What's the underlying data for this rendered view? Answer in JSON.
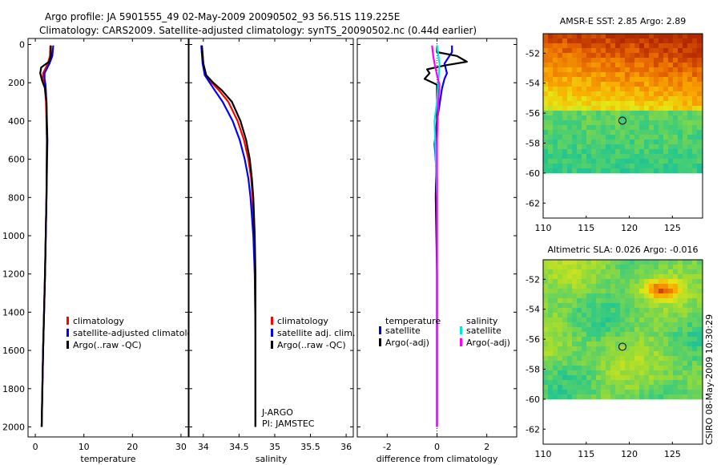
{
  "header": {
    "title_line1": "Argo profile: JA 5901555_49 02-May-2009 20090502_93 56.51S 119.225E",
    "title_line2": "Climatology: CARS2009. Satellite-adjusted climatology: synTS_20090502.nc (0.44d earlier)"
  },
  "footer": {
    "credit": "CSIRO 08-May-2009 10:30:29"
  },
  "colors": {
    "climatology": "#ff0000",
    "satellite": "#0000ff",
    "argo": "#000000",
    "satellite_sal": "#00e5e5",
    "argo_sal": "#ff00ff"
  },
  "chart_data": [
    {
      "id": "temperature",
      "type": "line",
      "xlabel": "temperature",
      "ylabel": "",
      "xlim": [
        -1.5,
        31.5
      ],
      "ylim": [
        2000,
        0
      ],
      "xticks": [
        0,
        10,
        20,
        30
      ],
      "yticks": [
        0,
        200,
        400,
        600,
        800,
        1000,
        1200,
        1400,
        1600,
        1800,
        2000
      ],
      "legend": [
        "climatology",
        "satellite-adjusted climatolo",
        "Argo(..raw -QC)"
      ],
      "series": [
        {
          "name": "climatology",
          "color": "#ff0000",
          "points": [
            [
              3.1,
              5
            ],
            [
              3.0,
              60
            ],
            [
              2.6,
              100
            ],
            [
              1.6,
              150
            ],
            [
              1.5,
              180
            ],
            [
              1.9,
              210
            ],
            [
              2.2,
              300
            ],
            [
              2.4,
              500
            ],
            [
              2.3,
              800
            ],
            [
              2.0,
              1200
            ],
            [
              1.6,
              1600
            ],
            [
              1.3,
              2000
            ]
          ]
        },
        {
          "name": "satellite-adjusted climatology",
          "color": "#0000ff",
          "points": [
            [
              3.7,
              5
            ],
            [
              3.5,
              60
            ],
            [
              2.9,
              100
            ],
            [
              1.9,
              150
            ],
            [
              1.9,
              180
            ],
            [
              2.1,
              210
            ],
            [
              2.3,
              300
            ],
            [
              2.5,
              500
            ],
            [
              2.3,
              800
            ],
            [
              2.0,
              1200
            ],
            [
              1.6,
              1600
            ],
            [
              1.3,
              2000
            ]
          ]
        },
        {
          "name": "Argo",
          "color": "#000000",
          "points": [
            [
              3.2,
              5
            ],
            [
              3.2,
              60
            ],
            [
              2.8,
              90
            ],
            [
              1.2,
              120
            ],
            [
              1.0,
              150
            ],
            [
              1.4,
              190
            ],
            [
              2.0,
              230
            ],
            [
              2.3,
              300
            ],
            [
              2.4,
              500
            ],
            [
              2.3,
              800
            ],
            [
              2.0,
              1200
            ],
            [
              1.6,
              1600
            ],
            [
              1.3,
              2000
            ]
          ]
        }
      ]
    },
    {
      "id": "salinity",
      "type": "line",
      "xlabel": "salinity",
      "ylabel": "",
      "xlim": [
        33.8,
        36.1
      ],
      "ylim": [
        2000,
        0
      ],
      "xticks": [
        34,
        34.5,
        35,
        35.5,
        36
      ],
      "yticks": [
        0,
        200,
        400,
        600,
        800,
        1000,
        1200,
        1400,
        1600,
        1800,
        2000
      ],
      "legend": [
        "climatology",
        "satellite adj. clim.",
        "Argo(..raw -QC)"
      ],
      "annotation": [
        "J-ARGO",
        "PI: JAMSTEC"
      ],
      "series": [
        {
          "name": "climatology",
          "color": "#ff0000",
          "points": [
            [
              33.98,
              5
            ],
            [
              34.0,
              100
            ],
            [
              34.03,
              160
            ],
            [
              34.12,
              200
            ],
            [
              34.22,
              240
            ],
            [
              34.35,
              300
            ],
            [
              34.48,
              400
            ],
            [
              34.57,
              500
            ],
            [
              34.63,
              600
            ],
            [
              34.67,
              700
            ],
            [
              34.69,
              800
            ],
            [
              34.71,
              1000
            ],
            [
              34.72,
              1200
            ],
            [
              34.73,
              1500
            ],
            [
              34.73,
              2000
            ]
          ]
        },
        {
          "name": "satellite adj. clim.",
          "color": "#0000ff",
          "points": [
            [
              33.97,
              5
            ],
            [
              33.99,
              100
            ],
            [
              34.02,
              160
            ],
            [
              34.09,
              200
            ],
            [
              34.16,
              240
            ],
            [
              34.27,
              300
            ],
            [
              34.41,
              400
            ],
            [
              34.51,
              500
            ],
            [
              34.58,
              600
            ],
            [
              34.63,
              700
            ],
            [
              34.66,
              800
            ],
            [
              34.7,
              1000
            ],
            [
              34.72,
              1200
            ],
            [
              34.73,
              1500
            ],
            [
              34.73,
              2000
            ]
          ]
        },
        {
          "name": "Argo",
          "color": "#000000",
          "points": [
            [
              33.98,
              5
            ],
            [
              34.0,
              100
            ],
            [
              34.04,
              160
            ],
            [
              34.14,
              200
            ],
            [
              34.26,
              240
            ],
            [
              34.4,
              300
            ],
            [
              34.52,
              400
            ],
            [
              34.6,
              500
            ],
            [
              34.65,
              600
            ],
            [
              34.68,
              700
            ],
            [
              34.7,
              800
            ],
            [
              34.72,
              1000
            ],
            [
              34.73,
              1200
            ],
            [
              34.73,
              1500
            ],
            [
              34.73,
              2000
            ]
          ]
        }
      ]
    },
    {
      "id": "difference",
      "type": "line",
      "xlabel": "difference from climatology",
      "ylabel": "",
      "xlim": [
        -3.2,
        3.2
      ],
      "ylim": [
        2000,
        0
      ],
      "xticks": [
        -2,
        0,
        2
      ],
      "yticks": [
        0,
        200,
        400,
        600,
        800,
        1000,
        1200,
        1400,
        1600,
        1800,
        2000
      ],
      "legend": [
        "temperature",
        "satellite",
        "Argo(-adj)",
        "salinity",
        "satellite",
        "Argo(-adj)"
      ],
      "series": [
        {
          "name": "temperature satellite",
          "color": "#0000ff",
          "points": [
            [
              0.6,
              5
            ],
            [
              0.6,
              40
            ],
            [
              0.3,
              100
            ],
            [
              0.4,
              150
            ],
            [
              0.3,
              180
            ],
            [
              0.2,
              230
            ],
            [
              0.0,
              400
            ],
            [
              -0.1,
              520
            ],
            [
              0.0,
              700
            ],
            [
              0.0,
              1000
            ],
            [
              0.0,
              1400
            ],
            [
              0.0,
              2000
            ]
          ]
        },
        {
          "name": "temperature Argo(-adj)",
          "color": "#000000",
          "points": [
            [
              0.0,
              5
            ],
            [
              0.0,
              40
            ],
            [
              0.8,
              60
            ],
            [
              1.2,
              90
            ],
            [
              0.3,
              110
            ],
            [
              -0.4,
              130
            ],
            [
              -0.3,
              150
            ],
            [
              -0.5,
              180
            ],
            [
              0.0,
              210
            ],
            [
              0.0,
              400
            ],
            [
              -0.05,
              800
            ],
            [
              0.0,
              1200
            ],
            [
              0.0,
              2000
            ]
          ]
        },
        {
          "name": "salinity satellite",
          "color": "#00e5e5",
          "points": [
            [
              0.0,
              5
            ],
            [
              0.1,
              100
            ],
            [
              0.05,
              200
            ],
            [
              0.0,
              300
            ],
            [
              -0.1,
              400
            ],
            [
              -0.05,
              600
            ],
            [
              0.0,
              800
            ],
            [
              0.0,
              1000
            ],
            [
              0.0,
              2000
            ]
          ]
        },
        {
          "name": "salinity Argo(-adj)",
          "color": "#ff00ff",
          "points": [
            [
              -0.2,
              5
            ],
            [
              -0.15,
              60
            ],
            [
              -0.1,
              100
            ],
            [
              0.0,
              160
            ],
            [
              0.1,
              210
            ],
            [
              0.05,
              300
            ],
            [
              0.0,
              500
            ],
            [
              0.0,
              800
            ],
            [
              0.0,
              2000
            ]
          ]
        }
      ]
    },
    {
      "id": "sst_map",
      "type": "heatmap",
      "title": "AMSR-E SST: 2.85 Argo: 2.89",
      "xlim": [
        110,
        128.5
      ],
      "ylim": [
        -63,
        -50.7
      ],
      "xticks": [
        110,
        115,
        120,
        125
      ],
      "yticks": [
        -52,
        -54,
        -56,
        -58,
        -60,
        -62
      ],
      "marker": {
        "lon": 119.2,
        "lat": -56.5
      }
    },
    {
      "id": "sla_map",
      "type": "heatmap",
      "title": "Altimetric SLA: 0.026 Argo: -0.016",
      "xlim": [
        110,
        128.5
      ],
      "ylim": [
        -63,
        -50.7
      ],
      "xticks": [
        110,
        115,
        120,
        125
      ],
      "yticks": [
        -52,
        -54,
        -56,
        -58,
        -60,
        -62
      ],
      "marker": {
        "lon": 119.2,
        "lat": -56.5
      }
    }
  ]
}
